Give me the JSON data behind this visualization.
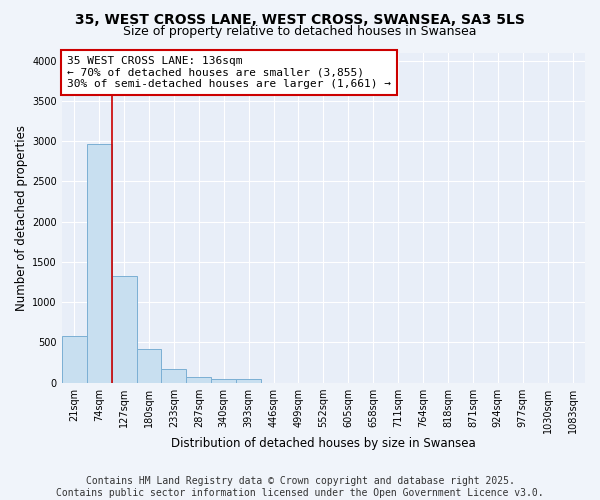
{
  "title": "35, WEST CROSS LANE, WEST CROSS, SWANSEA, SA3 5LS",
  "subtitle": "Size of property relative to detached houses in Swansea",
  "xlabel": "Distribution of detached houses by size in Swansea",
  "ylabel": "Number of detached properties",
  "footnote1": "Contains HM Land Registry data © Crown copyright and database right 2025.",
  "footnote2": "Contains public sector information licensed under the Open Government Licence v3.0.",
  "annotation_title": "35 WEST CROSS LANE: 136sqm",
  "annotation_line1": "← 70% of detached houses are smaller (3,855)",
  "annotation_line2": "30% of semi-detached houses are larger (1,661) →",
  "bar_labels": [
    "21sqm",
    "74sqm",
    "127sqm",
    "180sqm",
    "233sqm",
    "287sqm",
    "340sqm",
    "393sqm",
    "446sqm",
    "499sqm",
    "552sqm",
    "605sqm",
    "658sqm",
    "711sqm",
    "764sqm",
    "818sqm",
    "871sqm",
    "924sqm",
    "977sqm",
    "1030sqm",
    "1083sqm"
  ],
  "bar_values": [
    580,
    2970,
    1330,
    415,
    165,
    70,
    45,
    45,
    0,
    0,
    0,
    0,
    0,
    0,
    0,
    0,
    0,
    0,
    0,
    0,
    0
  ],
  "bar_color": "#c8dff0",
  "bar_edge_color": "#7bafd4",
  "vline_color": "#cc0000",
  "ylim_max": 4100,
  "fig_bg": "#f0f4fa",
  "plot_bg": "#e8eef8",
  "grid_color": "#ffffff",
  "annotation_box_edge": "#cc0000",
  "title_fontsize": 10,
  "subtitle_fontsize": 9,
  "axis_label_fontsize": 8.5,
  "tick_fontsize": 7,
  "annotation_fontsize": 8,
  "footnote_fontsize": 7
}
